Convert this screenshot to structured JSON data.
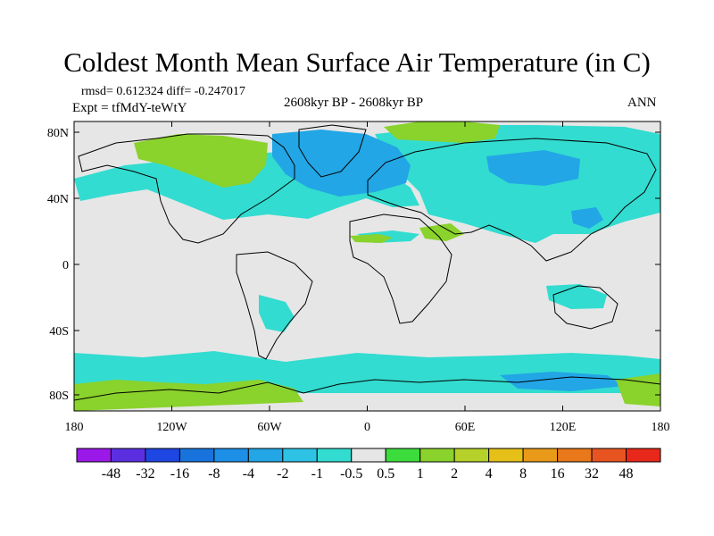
{
  "title": "Coldest Month Mean Surface Air Temperature (in C)",
  "stats": {
    "rmsd_line": "rmsd= 0.612324 diff= -0.247017",
    "expt_line": "Expt = tfMdY-teWtY"
  },
  "period": "2608kyr BP - 2608kyr BP",
  "season": "ANN",
  "lat_ticks": [
    "80N",
    "40N",
    "0",
    "40S",
    "80S"
  ],
  "lon_ticks": [
    "180",
    "120W",
    "60W",
    "0",
    "60E",
    "120E",
    "180"
  ],
  "colorbar": {
    "labels": [
      "-48",
      "-32",
      "-16",
      "-8",
      "-4",
      "-2",
      "-1",
      "-0.5",
      "0.5",
      "1",
      "2",
      "4",
      "8",
      "16",
      "32",
      "48"
    ],
    "colors": [
      "#9a18e8",
      "#5b2fe0",
      "#1e46e2",
      "#1874dc",
      "#1e8fe6",
      "#22a6e6",
      "#2ec2e4",
      "#32dcd0",
      "#e6e6e6",
      "#3cdc3c",
      "#8ad22c",
      "#b6d22a",
      "#e6c018",
      "#e89a18",
      "#e8781a",
      "#e85420",
      "#e8281a"
    ]
  },
  "map": {
    "background_color": "#e6e6e6",
    "cool_color": "#32dcd0",
    "blue_color": "#22a6e6",
    "green_color": "#8ad22c"
  }
}
